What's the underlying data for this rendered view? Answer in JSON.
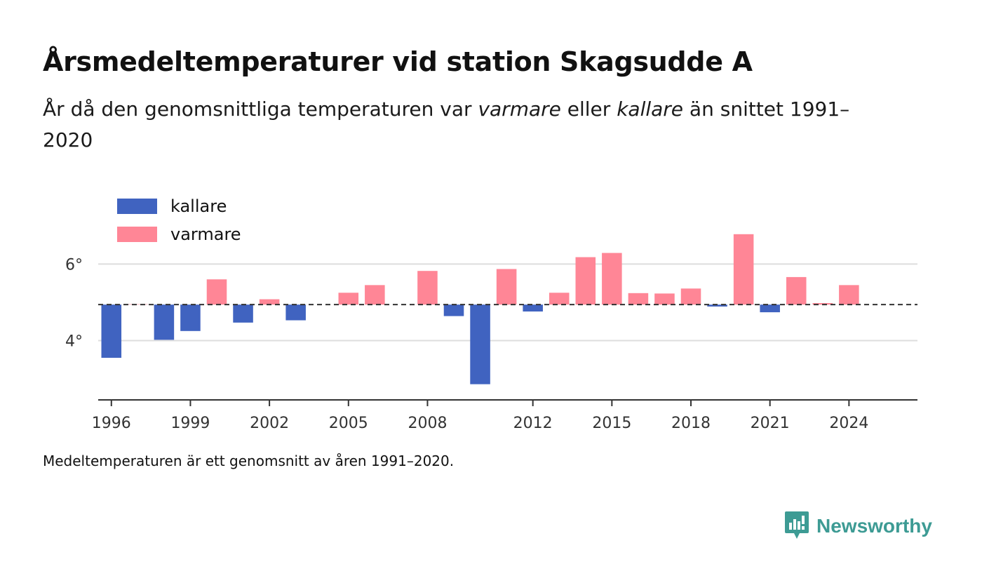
{
  "title": "Årsmedeltemperaturer vid station Skagsudde A",
  "subtitle": {
    "part1": "År då den genomsnittliga temperaturen var ",
    "warmer": "varmare",
    "part2": " eller ",
    "colder": "kallare",
    "part3": " än snittet 1991–2020"
  },
  "footnote": "Medeltemperaturen är ett genomsnitt av åren 1991–2020.",
  "brand": "Newsworthy",
  "colors": {
    "kallare": "#4063c0",
    "varmare": "#ff8696",
    "reference": "#333333",
    "grid": "#dddddd"
  },
  "chart_data": {
    "type": "bar",
    "legend": [
      "kallare",
      "varmare"
    ],
    "legend_position": "top-left",
    "reference_value": 4.94,
    "ylim": [
      2.45,
      7.4
    ],
    "yticks": [
      4,
      6
    ],
    "ytick_labels": [
      "4°",
      "6°"
    ],
    "xlim": [
      1995.5,
      2026.6
    ],
    "xticks": [
      1996,
      1999,
      2002,
      2005,
      2008,
      2012,
      2015,
      2018,
      2021,
      2024
    ],
    "grid": true,
    "years": [
      1996,
      1997,
      1998,
      1999,
      2000,
      2001,
      2002,
      2003,
      2004,
      2005,
      2006,
      2007,
      2008,
      2009,
      2010,
      2011,
      2012,
      2013,
      2014,
      2015,
      2016,
      2017,
      2018,
      2019,
      2020,
      2021,
      2022,
      2023,
      2024
    ],
    "values": [
      3.55,
      4.95,
      4.02,
      4.25,
      5.6,
      4.47,
      5.08,
      4.53,
      4.94,
      5.25,
      5.45,
      4.94,
      5.82,
      4.64,
      2.86,
      5.87,
      4.76,
      5.25,
      6.18,
      6.29,
      5.24,
      5.23,
      5.36,
      4.89,
      6.78,
      4.74,
      5.66,
      4.98,
      5.45
    ]
  }
}
